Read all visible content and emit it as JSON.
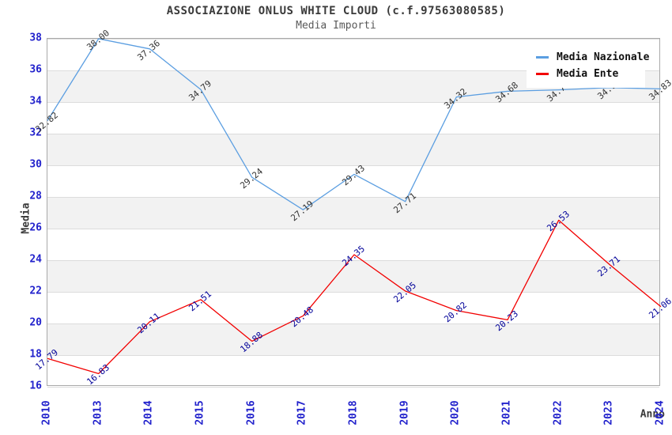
{
  "title": "ASSOCIAZIONE ONLUS WHITE CLOUD (c.f.97563080585)",
  "subtitle": "Media Importi",
  "legend": [
    {
      "label": "Media Nazionale",
      "color": "#5b9ee1"
    },
    {
      "label": "Media Ente",
      "color": "#f20000"
    }
  ],
  "colors": {
    "national_line": "#5b9ee1",
    "entity_line": "#f20000",
    "tick_label": "#2222cc",
    "national_value_label": "#333333",
    "entity_value_label": "#000099",
    "band_fill": "#f2f2f2",
    "gridline": "#dcdcdc",
    "title_text": "#3a3a3a"
  },
  "chart_data": {
    "type": "line",
    "title": "ASSOCIAZIONE ONLUS WHITE CLOUD (c.f.97563080585)",
    "subtitle": "Media Importi",
    "xlabel": "Anno",
    "ylabel": "Media",
    "ylim": [
      16,
      38
    ],
    "ytick_step": 2,
    "grid": true,
    "legend_position": "top-right",
    "band_pairs": [
      [
        18,
        20
      ],
      [
        22,
        24
      ],
      [
        26,
        28
      ],
      [
        30,
        32
      ],
      [
        34,
        36
      ]
    ],
    "categories": [
      "2010",
      "2013",
      "2014",
      "2015",
      "2016",
      "2017",
      "2018",
      "2019",
      "2020",
      "2021",
      "2022",
      "2023",
      "2024"
    ],
    "series": [
      {
        "name": "Media Nazionale",
        "color": "#5b9ee1",
        "label_color": "#333333",
        "values": [
          32.82,
          38.0,
          37.36,
          34.79,
          29.24,
          27.19,
          29.43,
          27.71,
          34.32,
          34.68,
          34.77,
          34.91,
          34.83
        ],
        "labels": [
          "32.82",
          "38.00",
          "37.36",
          "34.79",
          "29.24",
          "27.19",
          "29.43",
          "27.71",
          "34.32",
          "34.68",
          "34.77",
          "34.91",
          "34.83"
        ]
      },
      {
        "name": "Media Ente",
        "color": "#f20000",
        "label_color": "#000099",
        "values": [
          17.79,
          16.83,
          20.11,
          21.51,
          18.88,
          20.48,
          24.35,
          22.05,
          20.82,
          20.23,
          26.53,
          23.71,
          21.06
        ],
        "labels": [
          "17.79",
          "16.83",
          "20.11",
          "21.51",
          "18.88",
          "20.48",
          "24.35",
          "22.05",
          "20.82",
          "20.23",
          "26.53",
          "23.71",
          "21.06"
        ]
      }
    ]
  }
}
